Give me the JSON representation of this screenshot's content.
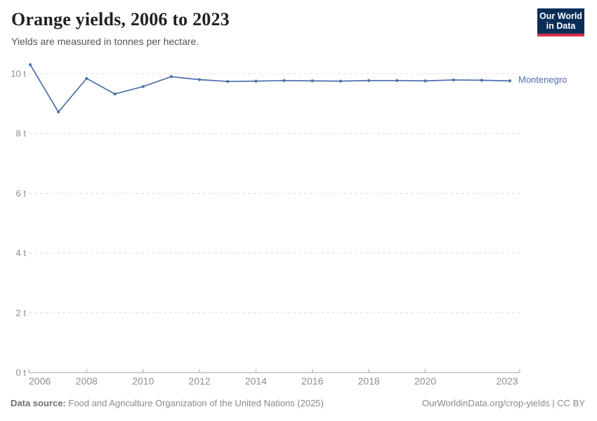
{
  "header": {
    "title": "Orange yields, 2006 to 2023",
    "subtitle": "Yields are measured in tonnes per hectare.",
    "logo_line1": "Our World",
    "logo_line2": "in Data"
  },
  "chart_data": {
    "type": "line",
    "title": "Orange yields, 2006 to 2023",
    "xlabel": "",
    "ylabel": "",
    "unit": "tonnes per hectare",
    "x": [
      2006,
      2007,
      2008,
      2009,
      2010,
      2011,
      2012,
      2013,
      2014,
      2015,
      2016,
      2017,
      2018,
      2019,
      2020,
      2021,
      2022,
      2023
    ],
    "series": [
      {
        "name": "Montenegro",
        "color": "#4c6fad",
        "values": [
          10.3,
          8.72,
          9.84,
          9.32,
          9.57,
          9.9,
          9.8,
          9.74,
          9.75,
          9.77,
          9.76,
          9.75,
          9.77,
          9.77,
          9.76,
          9.79,
          9.78,
          9.76
        ]
      }
    ],
    "xlim": [
      2006,
      2023
    ],
    "ylim": [
      0,
      10.4
    ],
    "grid": true,
    "legend_position": "end-of-line",
    "y_ticks": [
      {
        "value": 0,
        "label": "0 t"
      },
      {
        "value": 2,
        "label": "2 t"
      },
      {
        "value": 4,
        "label": "4 t"
      },
      {
        "value": 6,
        "label": "6 t"
      },
      {
        "value": 8,
        "label": "8 t"
      },
      {
        "value": 10,
        "label": "10 t"
      }
    ],
    "x_ticks": [
      {
        "value": 2006,
        "label": "2006"
      },
      {
        "value": 2008,
        "label": "2008"
      },
      {
        "value": 2010,
        "label": "2010"
      },
      {
        "value": 2012,
        "label": "2012"
      },
      {
        "value": 2014,
        "label": "2014"
      },
      {
        "value": 2016,
        "label": "2016"
      },
      {
        "value": 2018,
        "label": "2018"
      },
      {
        "value": 2020,
        "label": "2020"
      },
      {
        "value": 2023,
        "label": "2023"
      }
    ]
  },
  "footer": {
    "data_source_label": "Data source:",
    "data_source_value": "Food and Agriculture Organization of the United Nations (2025)",
    "credit": "OurWorldinData.org/crop-yields | CC BY"
  },
  "colors": {
    "accent_blue": "#4c6fad",
    "gridline": "#dddddd",
    "axis_line": "#a3a3a3",
    "tick_text": "#8e8e8e",
    "title_text": "#222222",
    "subtitle_text": "#555555",
    "footer_text": "#8a8a8a",
    "logo_bg": "#0b2e59",
    "logo_red": "#d93148"
  }
}
